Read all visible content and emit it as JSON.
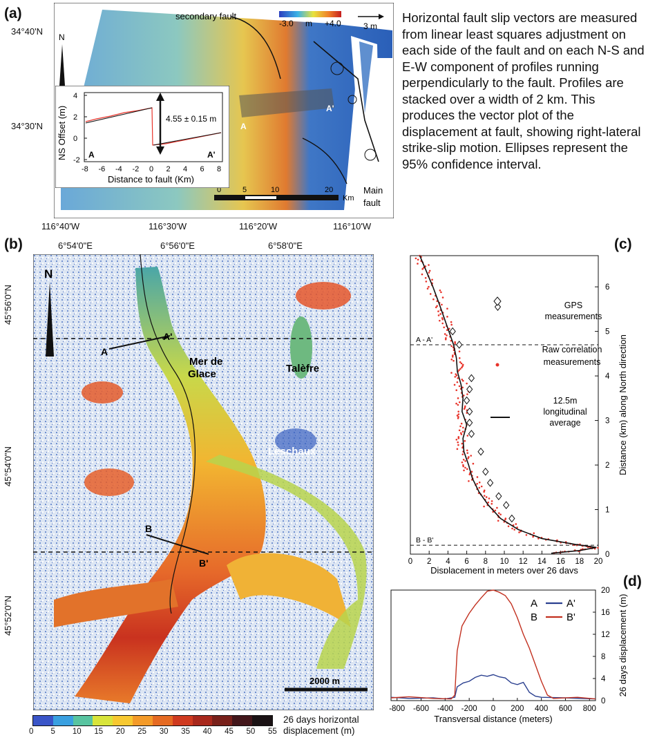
{
  "panel_labels": {
    "a": "(a)",
    "b": "(b)",
    "c": "(c)",
    "d": "(d)"
  },
  "panel_a": {
    "lat_ticks": [
      "34°40'N",
      "34°30'N"
    ],
    "lon_ticks": [
      "116°40'W",
      "116°30'W",
      "116°20'W",
      "116°10'W"
    ],
    "secondary_fault_label": "secondary fault",
    "main_fault_label": [
      "Main",
      "fault"
    ],
    "profile_labels": {
      "a": "A",
      "a_prime": "A'"
    },
    "colorbar": {
      "min": "-3.0",
      "unit": "m",
      "max": "+4.0"
    },
    "vector_scale": "3 m",
    "north": "N",
    "scalebar": {
      "ticks": [
        "0",
        "5",
        "10",
        "20"
      ],
      "unit": "Km"
    },
    "inset": {
      "ylabel": "NS Offset  (m)",
      "xlabel": "Distance to fault (Km)",
      "yticks": [
        "4",
        "2",
        "0",
        "-2"
      ],
      "xticks": [
        "-8",
        "-6",
        "-4",
        "-2",
        "0",
        "2",
        "4",
        "6",
        "8"
      ],
      "offset_label": "4.55 ± 0.15 m",
      "end_a": "A",
      "end_a_prime": "A'"
    }
  },
  "description": "Horizontal fault slip vectors are measured from linear least squares adjustment on each side of the fault and on each N-S and E-W component of profiles running perpendicularly to the fault. Profiles are stacked over a width of 2 km. This produces the vector plot of the displacement at fault, showing right-lateral strike-slip motion. Ellipses represent the 95% confidence interval.",
  "panel_b": {
    "lon_ticks": [
      "6°54'0\"E",
      "6°56'0\"E",
      "6°58'0\"E"
    ],
    "lat_ticks": [
      "45°56'0\"N",
      "45°54'0\"N",
      "45°52'0\"N"
    ],
    "north": "N",
    "places": {
      "mer_de_glace": [
        "Mer de",
        "Glace"
      ],
      "talefre": "Talèfre",
      "leschaux": "Leschaux"
    },
    "profile_labels": {
      "a": "A",
      "a_prime": "A'",
      "b": "B",
      "b_prime": "B'"
    },
    "scalebar": "2000 m",
    "colorbar": {
      "ticks": [
        "0",
        "5",
        "10",
        "15",
        "20",
        "25",
        "30",
        "35",
        "40",
        "45",
        "50",
        "55"
      ],
      "label": [
        "26 days horizontal",
        "displacement (m)"
      ],
      "colors": [
        "#3a55c8",
        "#3aa0e0",
        "#58c4a0",
        "#d8e43a",
        "#f7c830",
        "#f39a28",
        "#e56a22",
        "#cf3a1f",
        "#a8281c",
        "#78201a",
        "#42161a",
        "#1a1214"
      ]
    }
  },
  "chart_data": [
    {
      "type": "scatter",
      "panel": "(c)",
      "xlabel": "Displacement in meters over 26 days",
      "ylabel": "Distance (km) along North direction",
      "xlim": [
        0,
        20
      ],
      "ylim": [
        0,
        6.7
      ],
      "xticks": [
        0,
        2,
        4,
        6,
        8,
        10,
        12,
        14,
        16,
        18,
        20
      ],
      "yticks": [
        0,
        1,
        2,
        3,
        4,
        5,
        6
      ],
      "markers": {
        "a": "A - A'",
        "b": "B - B'"
      },
      "marker_y": {
        "a": 4.7,
        "b": 0.2
      },
      "series": [
        {
          "name": "GPS measurements",
          "style": "diamond",
          "points": [
            [
              9.3,
              5.55
            ],
            [
              4.5,
              5.0
            ],
            [
              5.2,
              4.7
            ],
            [
              6.5,
              3.95
            ],
            [
              6.3,
              3.7
            ],
            [
              6.0,
              3.45
            ],
            [
              6.3,
              3.2
            ],
            [
              6.3,
              2.95
            ],
            [
              6.5,
              2.7
            ],
            [
              7.5,
              2.3
            ],
            [
              8.0,
              1.85
            ],
            [
              8.5,
              1.6
            ],
            [
              9.4,
              1.3
            ],
            [
              10.2,
              1.1
            ],
            [
              10.8,
              0.8
            ]
          ]
        },
        {
          "name": "Raw correlation measurements",
          "style": "dot",
          "color": "#e8332a"
        },
        {
          "name": "12.5m longitudinal average",
          "style": "line",
          "profile": [
            [
              1.0,
              6.7
            ],
            [
              1.6,
              6.4
            ],
            [
              2.4,
              6.0
            ],
            [
              3.1,
              5.6
            ],
            [
              3.6,
              5.3
            ],
            [
              4.1,
              5.0
            ],
            [
              4.6,
              4.7
            ],
            [
              4.9,
              4.4
            ],
            [
              5.0,
              4.1
            ],
            [
              5.4,
              3.8
            ],
            [
              5.6,
              3.5
            ],
            [
              5.5,
              3.2
            ],
            [
              6.0,
              2.9
            ],
            [
              5.6,
              2.6
            ],
            [
              5.7,
              2.3
            ],
            [
              6.2,
              2.0
            ],
            [
              6.6,
              1.7
            ],
            [
              7.3,
              1.4
            ],
            [
              8.3,
              1.1
            ],
            [
              9.6,
              0.8
            ],
            [
              11.5,
              0.55
            ],
            [
              14.0,
              0.35
            ],
            [
              17.5,
              0.22
            ],
            [
              19.8,
              0.15
            ],
            [
              18.0,
              0.08
            ],
            [
              15.0,
              0.02
            ]
          ]
        }
      ]
    },
    {
      "type": "line",
      "panel": "(d)",
      "xlabel": "Transversal distance (meters)",
      "ylabel": "26 days displacement (m)",
      "xlim": [
        -850,
        850
      ],
      "ylim": [
        0,
        20
      ],
      "xticks": [
        -800,
        -600,
        -400,
        -200,
        0,
        200,
        400,
        600,
        800
      ],
      "yticks": [
        0,
        4,
        8,
        12,
        16,
        20
      ],
      "series": [
        {
          "name": "A  A'",
          "color": "#2a3f8f",
          "points": [
            [
              -850,
              0.6
            ],
            [
              -700,
              0.4
            ],
            [
              -500,
              0.5
            ],
            [
              -400,
              0.3
            ],
            [
              -320,
              0.6
            ],
            [
              -300,
              2.5
            ],
            [
              -250,
              3.2
            ],
            [
              -200,
              3.5
            ],
            [
              -150,
              4.2
            ],
            [
              -100,
              4.6
            ],
            [
              -50,
              4.4
            ],
            [
              0,
              4.7
            ],
            [
              50,
              4.3
            ],
            [
              100,
              4.1
            ],
            [
              150,
              3.2
            ],
            [
              200,
              2.9
            ],
            [
              250,
              3.3
            ],
            [
              300,
              1.5
            ],
            [
              350,
              0.8
            ],
            [
              400,
              0.6
            ],
            [
              600,
              0.5
            ],
            [
              850,
              0.3
            ]
          ]
        },
        {
          "name": "B  B'",
          "color": "#c2301f",
          "points": [
            [
              -850,
              0.5
            ],
            [
              -700,
              0.7
            ],
            [
              -500,
              0.4
            ],
            [
              -350,
              0.3
            ],
            [
              -320,
              1.0
            ],
            [
              -300,
              9.0
            ],
            [
              -260,
              13.5
            ],
            [
              -200,
              15.8
            ],
            [
              -150,
              17.3
            ],
            [
              -100,
              18.6
            ],
            [
              -50,
              19.8
            ],
            [
              0,
              20.0
            ],
            [
              50,
              19.6
            ],
            [
              100,
              19.0
            ],
            [
              150,
              17.5
            ],
            [
              200,
              15.0
            ],
            [
              250,
              12.0
            ],
            [
              300,
              9.5
            ],
            [
              350,
              6.5
            ],
            [
              400,
              3.5
            ],
            [
              450,
              1.0
            ],
            [
              500,
              0.4
            ],
            [
              700,
              0.6
            ],
            [
              850,
              0.3
            ]
          ]
        }
      ]
    }
  ]
}
